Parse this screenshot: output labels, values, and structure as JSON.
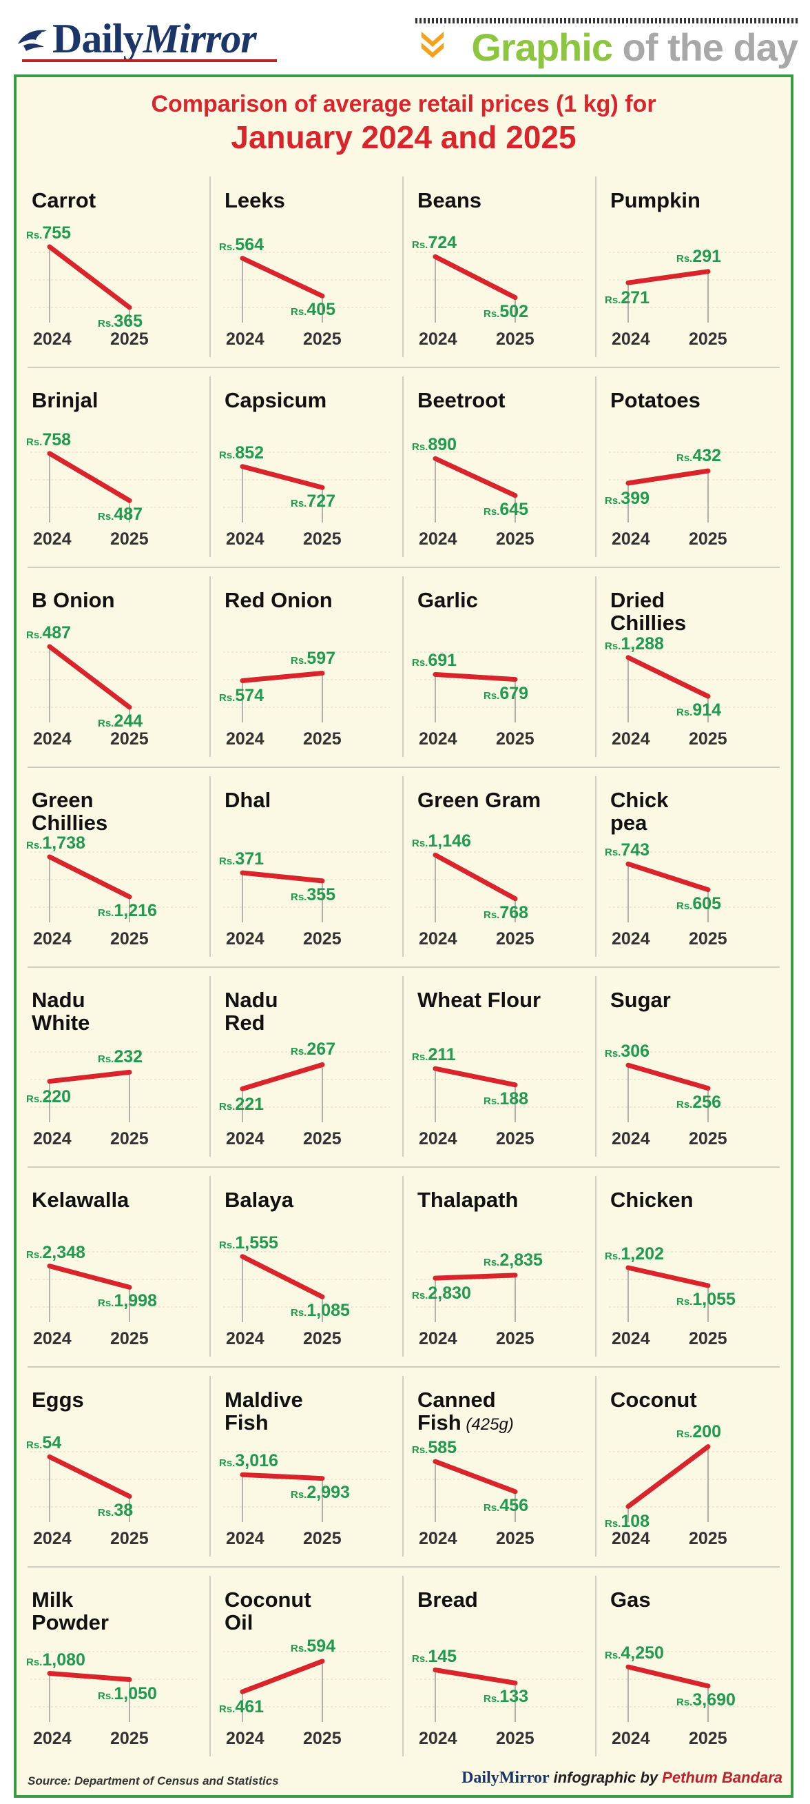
{
  "header": {
    "logo_text_a": "Daily",
    "logo_text_b": "Mirror",
    "gotd_a": "Graphic",
    "gotd_b": " of the day"
  },
  "chart_data": {
    "type": "line",
    "title": "Comparison of average retail prices (1 kg) for",
    "subtitle": "January 2024 and 2025",
    "currency": "Rs.",
    "x": [
      "2024",
      "2025"
    ],
    "series": [
      {
        "name": "Carrot",
        "values": [
          "755",
          "365"
        ]
      },
      {
        "name": "Leeks",
        "values": [
          "564",
          "405"
        ]
      },
      {
        "name": "Beans",
        "values": [
          "724",
          "502"
        ]
      },
      {
        "name": "Pumpkin",
        "values": [
          "271",
          "291"
        ]
      },
      {
        "name": "Brinjal",
        "values": [
          "758",
          "487"
        ]
      },
      {
        "name": "Capsicum",
        "values": [
          "852",
          "727"
        ]
      },
      {
        "name": "Beetroot",
        "values": [
          "890",
          "645"
        ]
      },
      {
        "name": "Potatoes",
        "values": [
          "399",
          "432"
        ]
      },
      {
        "name": "B Onion",
        "values": [
          "487",
          "244"
        ]
      },
      {
        "name": "Red Onion",
        "values": [
          "574",
          "597"
        ]
      },
      {
        "name": "Garlic",
        "values": [
          "691",
          "679"
        ]
      },
      {
        "name": "Dried\nChillies",
        "values": [
          "1,288",
          "914"
        ]
      },
      {
        "name": "Green\nChillies",
        "values": [
          "1,738",
          "1,216"
        ]
      },
      {
        "name": "Dhal",
        "values": [
          "371",
          "355"
        ]
      },
      {
        "name": "Green Gram",
        "values": [
          "1,146",
          "768"
        ]
      },
      {
        "name": "Chick\npea",
        "values": [
          "743",
          "605"
        ]
      },
      {
        "name": "Nadu\nWhite",
        "values": [
          "220",
          "232"
        ]
      },
      {
        "name": "Nadu\nRed",
        "values": [
          "221",
          "267"
        ]
      },
      {
        "name": "Wheat Flour",
        "values": [
          "211",
          "188"
        ]
      },
      {
        "name": "Sugar",
        "values": [
          "306",
          "256"
        ]
      },
      {
        "name": "Kelawalla",
        "values": [
          "2,348",
          "1,998"
        ]
      },
      {
        "name": "Balaya",
        "values": [
          "1,555",
          "1,085"
        ]
      },
      {
        "name": "Thalapath",
        "values": [
          "2,830",
          "2,835"
        ]
      },
      {
        "name": "Chicken",
        "values": [
          "1,202",
          "1,055"
        ]
      },
      {
        "name": "Eggs",
        "values": [
          "54",
          "38"
        ]
      },
      {
        "name": "Maldive\nFish",
        "values": [
          "3,016",
          "2,993"
        ]
      },
      {
        "name": "Canned\nFish",
        "note": "(425g)",
        "values": [
          "585",
          "456"
        ]
      },
      {
        "name": "Coconut",
        "values": [
          "108",
          "200"
        ]
      },
      {
        "name": "Milk\nPowder",
        "values": [
          "1,080",
          "1,050"
        ]
      },
      {
        "name": "Coconut\nOil",
        "values": [
          "461",
          "594"
        ]
      },
      {
        "name": "Bread",
        "values": [
          "145",
          "133"
        ]
      },
      {
        "name": "Gas",
        "values": [
          "4,250",
          "3,690"
        ]
      }
    ]
  },
  "footer": {
    "source": "Source: Department of Census and Statistics",
    "credit_brand": "DailyMirror",
    "credit_by": "infographic by",
    "credit_author": "Pethum Bandara"
  },
  "colors": {
    "line": "#d9242b",
    "price": "#1f9a4f",
    "frame": "#3a9b45",
    "bg": "#fbf8e4"
  }
}
